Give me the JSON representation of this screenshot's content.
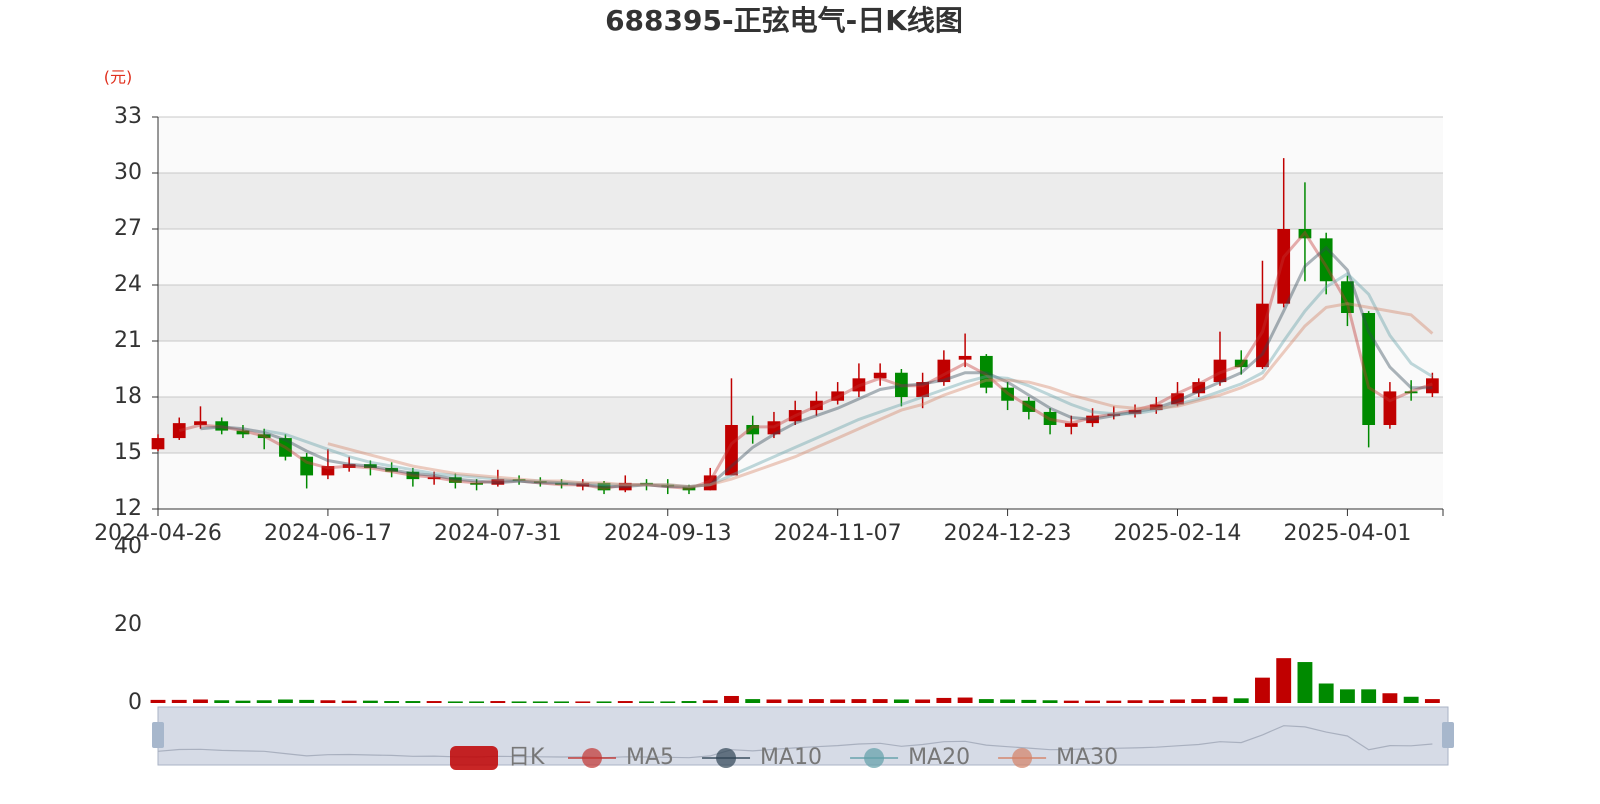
{
  "chart_data": {
    "type": "candlestick",
    "title": "688395-正弦电气-日K线图",
    "y_unit_label": "(元)",
    "candle_name": "日K",
    "up_color": "#c00000",
    "down_color": "#008a00",
    "legend_position": "bottom",
    "grid": true,
    "split_area": true,
    "ylim": [
      12,
      33
    ],
    "yticks": [
      12,
      15,
      18,
      21,
      24,
      27,
      30,
      33
    ],
    "categories": [
      "2024-04-26",
      null,
      null,
      null,
      null,
      null,
      null,
      null,
      "2024-06-17",
      null,
      null,
      null,
      null,
      null,
      null,
      null,
      "2024-07-31",
      null,
      null,
      null,
      null,
      null,
      null,
      null,
      "2024-09-13",
      null,
      null,
      null,
      null,
      null,
      null,
      null,
      "2024-11-07",
      null,
      null,
      null,
      null,
      null,
      null,
      null,
      "2024-12-23",
      null,
      null,
      null,
      null,
      null,
      null,
      null,
      "2025-02-14",
      null,
      null,
      null,
      null,
      null,
      null,
      null,
      "2025-04-01",
      null,
      null,
      null,
      null
    ],
    "open": [
      15.2,
      15.8,
      16.5,
      16.7,
      16.2,
      16.0,
      15.8,
      14.8,
      13.8,
      14.2,
      14.4,
      14.2,
      14.0,
      13.6,
      13.7,
      13.4,
      13.3,
      13.6,
      13.5,
      13.4,
      13.2,
      13.4,
      13.0,
      13.4,
      13.3,
      13.2,
      13.0,
      13.8,
      16.5,
      16.0,
      16.7,
      17.3,
      17.8,
      18.3,
      19.0,
      19.3,
      18.0,
      18.8,
      20.0,
      20.2,
      18.5,
      17.8,
      17.2,
      16.4,
      16.6,
      17.0,
      17.1,
      17.3,
      17.6,
      18.2,
      18.8,
      20.0,
      19.6,
      23.0,
      27.0,
      26.5,
      24.2,
      22.5,
      16.5,
      18.3,
      18.2
    ],
    "close": [
      15.8,
      16.6,
      16.7,
      16.2,
      16.0,
      15.8,
      14.8,
      13.8,
      14.3,
      14.4,
      14.2,
      14.0,
      13.6,
      13.7,
      13.4,
      13.3,
      13.6,
      13.5,
      13.4,
      13.3,
      13.4,
      13.0,
      13.4,
      13.3,
      13.2,
      13.0,
      13.8,
      16.5,
      16.0,
      16.7,
      17.3,
      17.8,
      18.3,
      19.0,
      19.3,
      18.0,
      18.8,
      20.0,
      20.2,
      18.5,
      17.8,
      17.2,
      16.5,
      16.6,
      17.0,
      17.1,
      17.3,
      17.6,
      18.2,
      18.8,
      20.0,
      19.6,
      23.0,
      27.0,
      26.5,
      24.2,
      22.5,
      16.5,
      18.3,
      18.2,
      19.0
    ],
    "low": [
      15.1,
      15.7,
      16.3,
      16.0,
      15.8,
      15.2,
      14.6,
      13.1,
      13.6,
      14.0,
      13.8,
      13.7,
      13.2,
      13.3,
      13.1,
      13.0,
      13.2,
      13.3,
      13.2,
      13.1,
      13.0,
      12.8,
      12.9,
      13.0,
      12.8,
      12.8,
      13.0,
      13.8,
      15.5,
      15.8,
      16.5,
      17.0,
      17.6,
      18.0,
      18.6,
      17.5,
      17.4,
      18.6,
      19.6,
      18.2,
      17.3,
      16.8,
      16.0,
      16.0,
      16.4,
      16.8,
      16.9,
      17.1,
      17.5,
      18.0,
      18.6,
      19.2,
      19.5,
      22.8,
      24.2,
      23.5,
      21.8,
      15.3,
      16.3,
      17.8,
      18.0
    ],
    "high": [
      16.0,
      16.9,
      17.5,
      16.9,
      16.5,
      16.3,
      16.0,
      15.0,
      15.2,
      14.8,
      14.6,
      14.5,
      14.2,
      14.0,
      13.9,
      13.6,
      14.1,
      13.8,
      13.7,
      13.6,
      13.6,
      13.5,
      13.8,
      13.6,
      13.6,
      13.3,
      14.2,
      19.0,
      17.0,
      17.2,
      17.8,
      18.3,
      18.8,
      19.8,
      19.8,
      19.5,
      19.3,
      20.5,
      21.4,
      20.3,
      18.8,
      18.0,
      17.4,
      17.0,
      17.4,
      17.5,
      17.6,
      18.0,
      18.8,
      19.0,
      21.5,
      20.5,
      25.3,
      30.8,
      29.5,
      26.8,
      24.5,
      22.6,
      18.8,
      18.9,
      19.3
    ],
    "series": [
      {
        "name": "MA5",
        "color": "#c23531",
        "values": [
          null,
          16.2,
          16.5,
          16.4,
          16.2,
          15.9,
          15.3,
          14.5,
          14.2,
          14.3,
          14.2,
          14.0,
          13.8,
          13.7,
          13.5,
          13.4,
          13.5,
          13.5,
          13.4,
          13.3,
          13.3,
          13.1,
          13.3,
          13.3,
          13.2,
          13.1,
          13.5,
          15.5,
          16.4,
          16.4,
          17.0,
          17.5,
          18.0,
          18.6,
          19.0,
          18.6,
          18.6,
          19.2,
          19.8,
          19.2,
          18.2,
          17.5,
          16.8,
          16.6,
          16.9,
          17.1,
          17.3,
          17.6,
          18.2,
          18.7,
          19.3,
          19.7,
          21.5,
          25.5,
          26.8,
          25.0,
          23.0,
          18.5,
          17.8,
          18.3,
          18.7
        ]
      },
      {
        "name": "MA10",
        "color": "#2f4554",
        "values": [
          null,
          null,
          16.3,
          16.4,
          16.3,
          16.1,
          15.7,
          15.1,
          14.6,
          14.4,
          14.3,
          14.1,
          13.9,
          13.8,
          13.6,
          13.5,
          13.4,
          13.5,
          13.4,
          13.4,
          13.3,
          13.2,
          13.2,
          13.3,
          13.2,
          13.2,
          13.3,
          14.3,
          15.3,
          16.0,
          16.6,
          17.0,
          17.4,
          17.9,
          18.4,
          18.6,
          18.7,
          18.9,
          19.3,
          19.3,
          18.8,
          18.1,
          17.4,
          16.9,
          16.8,
          17.0,
          17.2,
          17.4,
          17.8,
          18.3,
          18.8,
          19.3,
          20.3,
          22.6,
          25.0,
          26.0,
          24.8,
          21.5,
          19.6,
          18.5,
          18.5
        ]
      },
      {
        "name": "MA20",
        "color": "#61a0a8",
        "values": [
          null,
          null,
          null,
          null,
          null,
          16.2,
          16.0,
          15.6,
          15.2,
          14.8,
          14.5,
          14.3,
          14.1,
          13.9,
          13.8,
          13.7,
          13.6,
          13.5,
          13.5,
          13.4,
          13.4,
          13.3,
          13.3,
          13.3,
          13.3,
          13.2,
          13.3,
          13.8,
          14.3,
          14.8,
          15.3,
          15.8,
          16.3,
          16.8,
          17.2,
          17.6,
          18.0,
          18.4,
          18.8,
          19.1,
          19.0,
          18.6,
          18.1,
          17.6,
          17.2,
          17.1,
          17.1,
          17.3,
          17.6,
          17.9,
          18.3,
          18.7,
          19.3,
          21.0,
          22.6,
          23.9,
          24.6,
          23.5,
          21.3,
          19.8,
          19.1
        ]
      },
      {
        "name": "MA30",
        "color": "#d48265",
        "values": [
          null,
          null,
          null,
          null,
          null,
          null,
          null,
          null,
          15.5,
          15.2,
          14.9,
          14.6,
          14.3,
          14.1,
          13.9,
          13.8,
          13.7,
          13.6,
          13.5,
          13.5,
          13.4,
          13.4,
          13.3,
          13.3,
          13.3,
          13.2,
          13.3,
          13.6,
          14.0,
          14.4,
          14.8,
          15.3,
          15.8,
          16.3,
          16.8,
          17.3,
          17.6,
          18.1,
          18.5,
          18.9,
          18.9,
          18.8,
          18.5,
          18.1,
          17.8,
          17.5,
          17.4,
          17.4,
          17.5,
          17.8,
          18.1,
          18.5,
          19.0,
          20.4,
          21.8,
          22.8,
          23.0,
          22.8,
          22.6,
          22.4,
          21.4
        ]
      }
    ],
    "volume": {
      "ylim": [
        0,
        40
      ],
      "yticks": [
        0,
        20,
        40
      ],
      "values": [
        0.8,
        0.8,
        0.9,
        0.7,
        0.6,
        0.7,
        0.9,
        0.8,
        0.7,
        0.6,
        0.6,
        0.5,
        0.5,
        0.5,
        0.4,
        0.4,
        0.5,
        0.4,
        0.4,
        0.4,
        0.4,
        0.4,
        0.5,
        0.4,
        0.4,
        0.5,
        0.7,
        1.8,
        1.0,
        0.9,
        0.9,
        1.0,
        0.9,
        1.0,
        1.0,
        0.9,
        0.9,
        1.3,
        1.4,
        1.0,
        0.9,
        0.8,
        0.7,
        0.6,
        0.6,
        0.6,
        0.7,
        0.7,
        0.9,
        1.0,
        1.6,
        1.2,
        6.5,
        11.5,
        10.5,
        5.0,
        3.5,
        3.5,
        2.5,
        1.6,
        1.0
      ]
    }
  }
}
